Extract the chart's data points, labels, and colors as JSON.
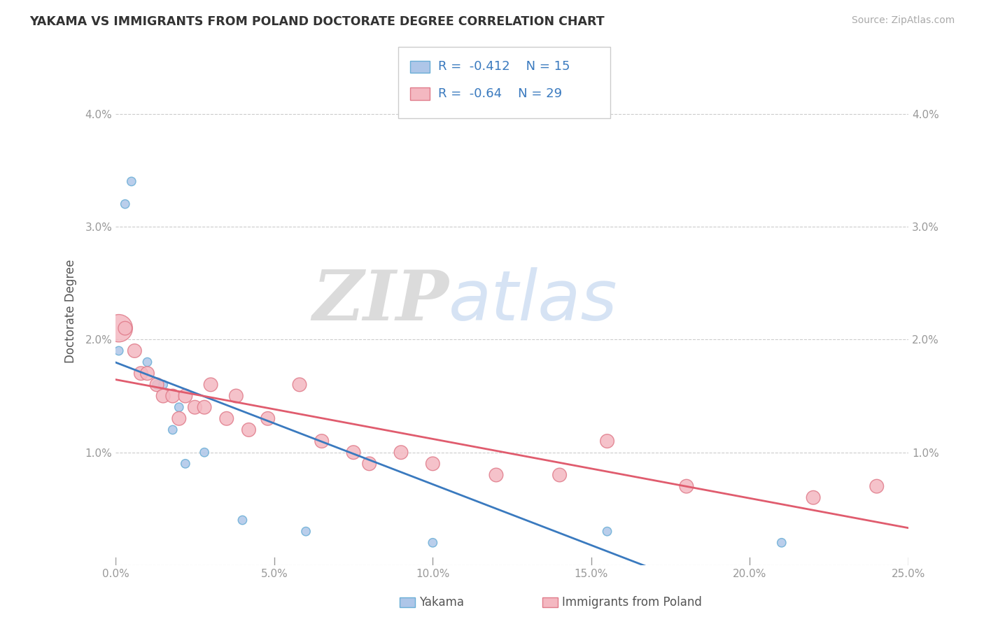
{
  "title": "YAKAMA VS IMMIGRANTS FROM POLAND DOCTORATE DEGREE CORRELATION CHART",
  "source": "Source: ZipAtlas.com",
  "ylabel": "Doctorate Degree",
  "watermark1": "ZIP",
  "watermark2": "atlas",
  "yakama_R": -0.412,
  "yakama_N": 15,
  "poland_R": -0.64,
  "poland_N": 29,
  "xlim": [
    0.0,
    0.25
  ],
  "ylim": [
    0.0,
    0.045
  ],
  "xticks": [
    0.0,
    0.05,
    0.1,
    0.15,
    0.2,
    0.25
  ],
  "yticks": [
    0.0,
    0.01,
    0.02,
    0.03,
    0.04
  ],
  "xticklabels": [
    "0.0%",
    "5.0%",
    "10.0%",
    "15.0%",
    "20.0%",
    "25.0%"
  ],
  "yticklabels_left": [
    "",
    "1.0%",
    "2.0%",
    "3.0%",
    "4.0%"
  ],
  "yticklabels_right": [
    "",
    "1.0%",
    "2.0%",
    "3.0%",
    "4.0%"
  ],
  "yakama_x": [
    0.001,
    0.003,
    0.005,
    0.01,
    0.013,
    0.015,
    0.018,
    0.02,
    0.022,
    0.028,
    0.04,
    0.06,
    0.1,
    0.155,
    0.21
  ],
  "yakama_y": [
    0.019,
    0.032,
    0.034,
    0.018,
    0.016,
    0.016,
    0.012,
    0.014,
    0.009,
    0.01,
    0.004,
    0.003,
    0.002,
    0.003,
    0.002
  ],
  "yakama_sizes": [
    80,
    80,
    80,
    80,
    80,
    80,
    80,
    80,
    80,
    80,
    80,
    80,
    80,
    80,
    80
  ],
  "poland_x": [
    0.001,
    0.003,
    0.006,
    0.008,
    0.01,
    0.013,
    0.015,
    0.018,
    0.02,
    0.022,
    0.025,
    0.028,
    0.03,
    0.035,
    0.038,
    0.042,
    0.048,
    0.058,
    0.065,
    0.075,
    0.08,
    0.09,
    0.1,
    0.12,
    0.14,
    0.155,
    0.18,
    0.22,
    0.24
  ],
  "poland_y": [
    0.021,
    0.021,
    0.019,
    0.017,
    0.017,
    0.016,
    0.015,
    0.015,
    0.013,
    0.015,
    0.014,
    0.014,
    0.016,
    0.013,
    0.015,
    0.012,
    0.013,
    0.016,
    0.011,
    0.01,
    0.009,
    0.01,
    0.009,
    0.008,
    0.008,
    0.011,
    0.007,
    0.006,
    0.007
  ],
  "poland_sizes": [
    800,
    200,
    200,
    200,
    200,
    200,
    200,
    200,
    200,
    200,
    200,
    200,
    200,
    200,
    200,
    200,
    200,
    200,
    200,
    200,
    200,
    200,
    200,
    200,
    200,
    200,
    200,
    200,
    200
  ],
  "yakama_color": "#aec6e8",
  "yakama_edge": "#6aaed6",
  "poland_color": "#f4b8c1",
  "poland_edge": "#e07b8a",
  "trend_yakama_color": "#3a7abf",
  "trend_poland_color": "#e05c6e",
  "background_color": "#ffffff",
  "grid_color": "#cccccc",
  "title_color": "#333333",
  "tick_color": "#999999",
  "legend_color": "#3a7abf"
}
